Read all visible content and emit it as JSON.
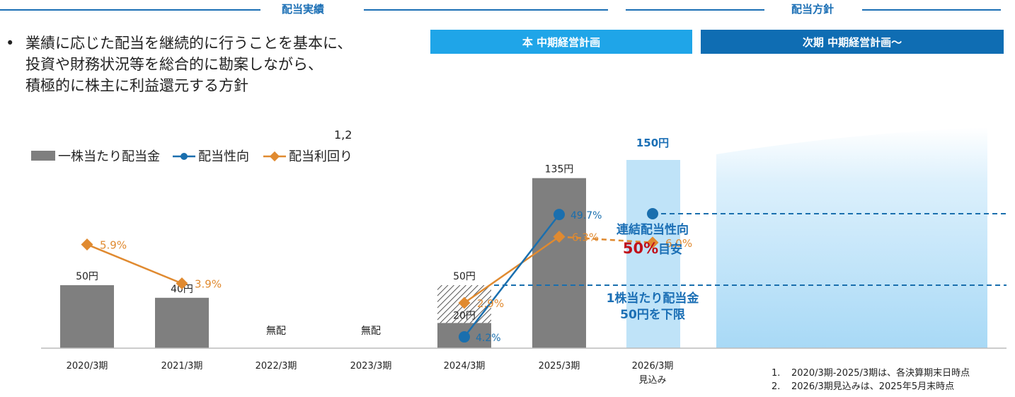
{
  "headers": {
    "results": "配当実績",
    "policy": "配当方針"
  },
  "bands": {
    "current_plan": "本 中期経営計画",
    "next_plan": "次期 中期経営計画～"
  },
  "bullet": {
    "marker": "•",
    "lines": [
      "業績に応じた配当を継続的に行うことを基本に、",
      "投資や財務状況等を総合的に勘案しながら、",
      "積極的に株主に利益還元する方針"
    ]
  },
  "stray_label": "1,2",
  "notes": [
    {
      "num": "1.",
      "text": "2020/3期-2025/3期は、各決算期末日時点"
    },
    {
      "num": "2.",
      "text": "2026/3期見込みは、2025年5月末時点"
    }
  ],
  "colors": {
    "bar": "#7f7f7f",
    "payout": "#1a6fae",
    "yield": "#e08a30",
    "accent_blue": "#1b6fb5",
    "band_light": "#1fa5e8",
    "band_dark": "#0f6db3",
    "target_red": "#c0101a"
  },
  "chart_data": {
    "type": "bar",
    "categories": [
      "2020/3期",
      "2021/3期",
      "2022/3期",
      "2023/3期",
      "2024/3期",
      "2025/3期",
      "2026/3期"
    ],
    "category_sublabels": [
      "",
      "",
      "",
      "",
      "",
      "",
      "見込み"
    ],
    "legend": {
      "placement": "top-left",
      "bar": "一株当たり配当金",
      "payout": "配当性向",
      "yield": "配当利回り"
    },
    "series": [
      {
        "name": "一株当たり配当金",
        "unit": "円",
        "values": [
          50,
          40,
          0,
          0,
          50,
          135,
          150
        ],
        "labels": [
          "50円",
          "40円",
          "無配",
          "無配",
          "50円",
          "135円",
          "150円"
        ],
        "inner_label_2024": "20円",
        "hatched_portion_2024": 30
      },
      {
        "name": "配当性向",
        "unit": "%",
        "values": [
          null,
          null,
          null,
          null,
          4.2,
          49.7,
          50.0
        ],
        "labels": [
          "",
          "",
          "",
          "",
          "4.2%",
          "49.7%",
          ""
        ]
      },
      {
        "name": "配当利回り",
        "unit": "%",
        "values": [
          5.9,
          3.9,
          null,
          null,
          2.9,
          6.3,
          6.0
        ],
        "labels": [
          "5.9%",
          "3.9%",
          "",
          "",
          "2.9%",
          "6.3%",
          "6.0%"
        ]
      }
    ],
    "ylim": [
      0,
      160
    ],
    "grid": false
  },
  "annotations": {
    "payout_target_line1": "連結配当性向",
    "payout_target_value": "50%",
    "payout_target_suffix": "目安",
    "dps_floor_line1": "1株当たり配当金",
    "dps_floor_line2": "50円を下限"
  }
}
